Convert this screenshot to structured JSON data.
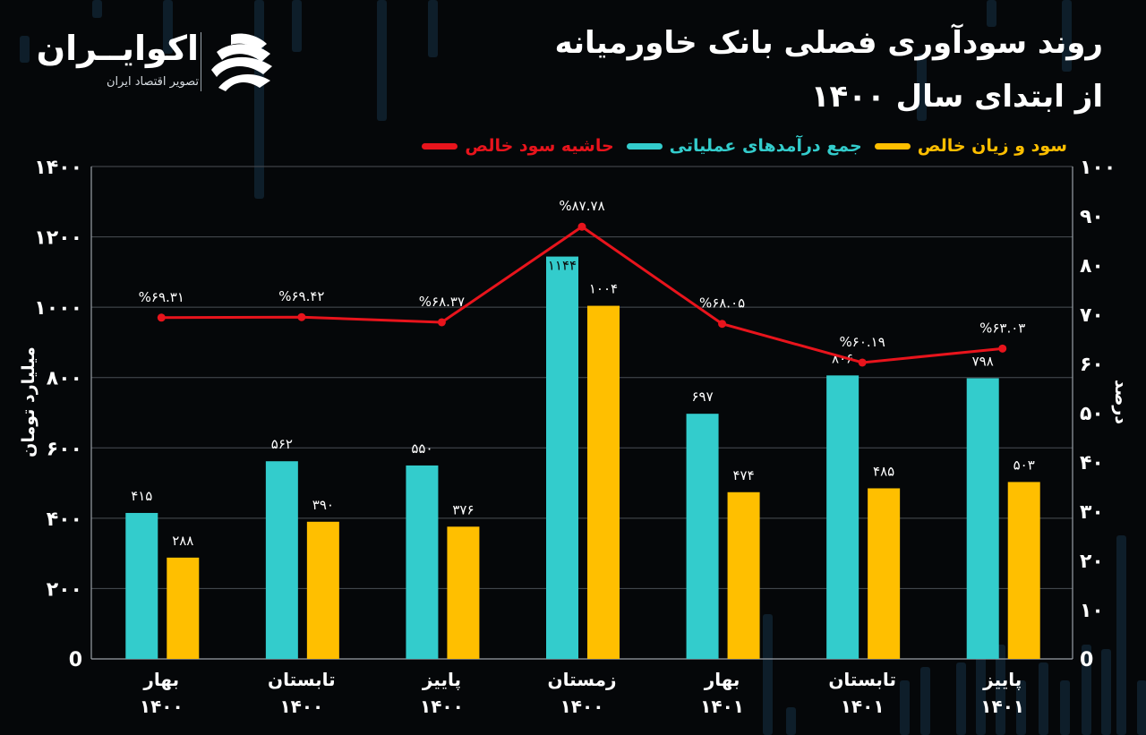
{
  "brand": {
    "name": "اکوایــران",
    "tagline": "تصویر اقتصاد ایران"
  },
  "title": {
    "line1": "روند سودآوری فصلی بانک خاورمیانه",
    "line2": "از ابتدای سال ۱۴۰۰"
  },
  "colors": {
    "background": "#050709",
    "revenue": "#33cccc",
    "profit": "#ffbf00",
    "margin": "#e8141c",
    "grid": "#4a4f55",
    "text": "#ffffff"
  },
  "legend": [
    {
      "key": "margin",
      "label": "حاشیه سود خالص",
      "color": "#e8141c"
    },
    {
      "key": "revenue",
      "label": "جمع درآمدهای عملیاتی",
      "color": "#33cccc"
    },
    {
      "key": "profit",
      "label": "سود و زیان خالص",
      "color": "#ffbf00"
    }
  ],
  "chart_data": {
    "type": "bar",
    "ylabel": "میلیارد تومان",
    "y2label": "درصد",
    "ylim": [
      0,
      1400
    ],
    "y2lim": [
      0,
      100
    ],
    "yticks": [
      "0",
      "۲۰۰",
      "۴۰۰",
      "۶۰۰",
      "۸۰۰",
      "۱۰۰۰",
      "۱۲۰۰",
      "۱۴۰۰"
    ],
    "y2ticks": [
      "0",
      "۱۰",
      "۲۰",
      "۳۰",
      "۴۰",
      "۵۰",
      "۶۰",
      "۷۰",
      "۸۰",
      "۹۰",
      "۱۰۰"
    ],
    "grid": true,
    "legend_position": "top-right",
    "categories": [
      {
        "season": "بهار",
        "year": "۱۴۰۰"
      },
      {
        "season": "تابستان",
        "year": "۱۴۰۰"
      },
      {
        "season": "پاییز",
        "year": "۱۴۰۰"
      },
      {
        "season": "زمستان",
        "year": "۱۴۰۰"
      },
      {
        "season": "بهار",
        "year": "۱۴۰۱"
      },
      {
        "season": "تابستان",
        "year": "۱۴۰۱"
      },
      {
        "season": "پاییز",
        "year": "۱۴۰۱"
      }
    ],
    "series": [
      {
        "name": "جمع درآمدهای عملیاتی",
        "type": "bar",
        "axis": "left",
        "color": "#33cccc",
        "values": [
          415,
          562,
          550,
          1144,
          697,
          806,
          798
        ],
        "labels": [
          "۴۱۵",
          "۵۶۲",
          "۵۵۰",
          "۱۱۴۴",
          "۶۹۷",
          "۸۰۶",
          "۷۹۸"
        ]
      },
      {
        "name": "سود و زیان خالص",
        "type": "bar",
        "axis": "left",
        "color": "#ffbf00",
        "values": [
          288,
          390,
          376,
          1004,
          474,
          485,
          503
        ],
        "labels": [
          "۲۸۸",
          "۳۹۰",
          "۳۷۶",
          "۱۰۰۴",
          "۴۷۴",
          "۴۸۵",
          "۵۰۳"
        ]
      },
      {
        "name": "حاشیه سود خالص",
        "type": "line",
        "axis": "right",
        "color": "#e8141c",
        "values": [
          69.31,
          69.42,
          68.37,
          87.78,
          68.05,
          60.19,
          63.03
        ],
        "labels": [
          "%۶۹.۳۱",
          "%۶۹.۴۲",
          "%۶۸.۳۷",
          "%۸۷.۷۸",
          "%۶۸.۰۵",
          "%۶۰.۱۹",
          "%۶۳.۰۳"
        ]
      }
    ]
  }
}
